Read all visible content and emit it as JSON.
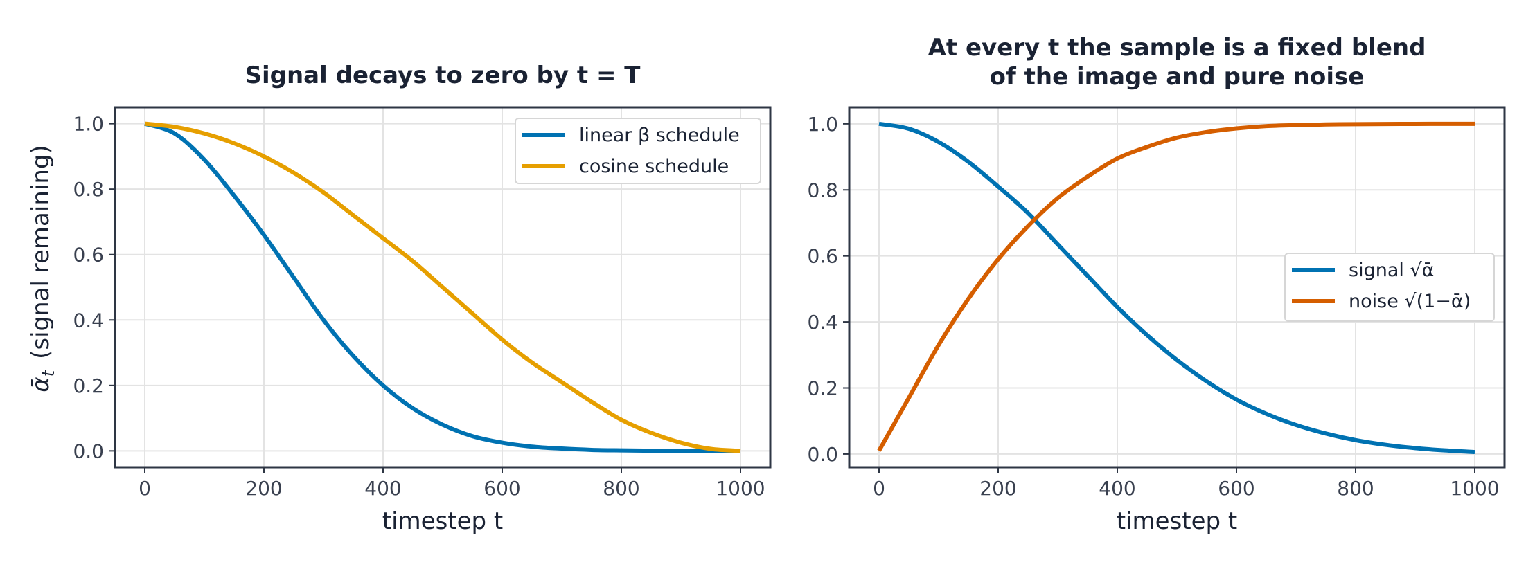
{
  "chart_data": [
    {
      "type": "line",
      "title": [
        "Signal decays to zero by t = T"
      ],
      "xlabel": "timestep t",
      "ylabel_symbol": "ᾱ",
      "ylabel_subscript": "t",
      "ylabel_text": "(signal remaining)",
      "xlim": [
        -50,
        1050
      ],
      "ylim": [
        -0.05,
        1.05
      ],
      "xticks": [
        0,
        200,
        400,
        600,
        800,
        1000
      ],
      "yticks": [
        0.0,
        0.2,
        0.4,
        0.6,
        0.8,
        1.0
      ],
      "xtick_labels": [
        "0",
        "200",
        "400",
        "600",
        "800",
        "1000"
      ],
      "ytick_labels": [
        "0.0",
        "0.2",
        "0.4",
        "0.6",
        "0.8",
        "1.0"
      ],
      "grid": true,
      "legend_position": "top-right",
      "x": [
        0,
        50,
        100,
        150,
        200,
        250,
        300,
        350,
        400,
        450,
        500,
        550,
        600,
        650,
        700,
        750,
        800,
        850,
        900,
        950,
        1000
      ],
      "series": [
        {
          "name": "linear β schedule",
          "color": "#0072b2",
          "values": [
            1.0,
            0.97,
            0.89,
            0.78,
            0.66,
            0.53,
            0.4,
            0.29,
            0.2,
            0.13,
            0.08,
            0.045,
            0.025,
            0.013,
            0.007,
            0.003,
            0.0015,
            0.0006,
            0.0002,
            0.0001,
            0.0
          ]
        },
        {
          "name": "cosine schedule",
          "color": "#e69f00",
          "values": [
            1.0,
            0.99,
            0.97,
            0.94,
            0.9,
            0.85,
            0.79,
            0.72,
            0.65,
            0.58,
            0.5,
            0.42,
            0.34,
            0.27,
            0.21,
            0.15,
            0.095,
            0.055,
            0.025,
            0.006,
            0.0
          ]
        }
      ]
    },
    {
      "type": "line",
      "title": [
        "At every t the sample is a fixed blend",
        "of the image and pure noise"
      ],
      "xlabel": "timestep t",
      "xlim": [
        -50,
        1050
      ],
      "ylim": [
        -0.04,
        1.05
      ],
      "xticks": [
        0,
        200,
        400,
        600,
        800,
        1000
      ],
      "yticks": [
        0.0,
        0.2,
        0.4,
        0.6,
        0.8,
        1.0
      ],
      "xtick_labels": [
        "0",
        "200",
        "400",
        "600",
        "800",
        "1000"
      ],
      "ytick_labels": [
        "0.0",
        "0.2",
        "0.4",
        "0.6",
        "0.8",
        "1.0"
      ],
      "grid": true,
      "legend_position": "center-right",
      "x": [
        0,
        50,
        100,
        150,
        200,
        250,
        300,
        350,
        400,
        450,
        500,
        550,
        600,
        650,
        700,
        750,
        800,
        850,
        900,
        950,
        1000
      ],
      "series": [
        {
          "name": "signal  √ᾱ",
          "color": "#0072b2",
          "values": [
            1.0,
            0.985,
            0.945,
            0.885,
            0.81,
            0.73,
            0.635,
            0.54,
            0.445,
            0.36,
            0.285,
            0.22,
            0.165,
            0.122,
            0.088,
            0.062,
            0.042,
            0.028,
            0.018,
            0.011,
            0.006
          ]
        },
        {
          "name": "noise  √(1−ᾱ)",
          "color": "#d55e00",
          "values": [
            0.01,
            0.17,
            0.33,
            0.47,
            0.59,
            0.69,
            0.775,
            0.84,
            0.895,
            0.93,
            0.958,
            0.975,
            0.986,
            0.993,
            0.996,
            0.998,
            0.999,
            0.9995,
            0.9998,
            0.9999,
            1.0
          ]
        }
      ]
    }
  ]
}
